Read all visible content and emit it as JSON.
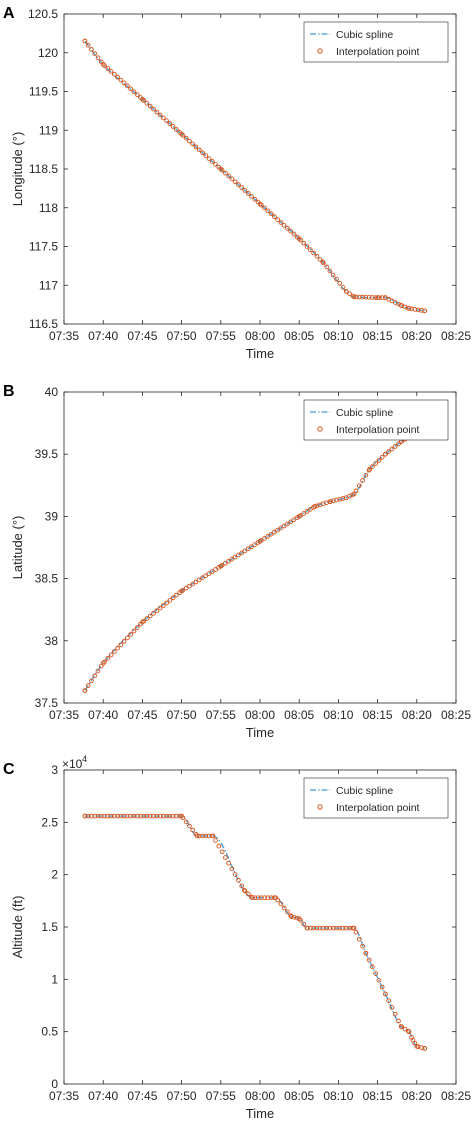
{
  "chart_data": [
    {
      "panel": "A",
      "type": "line",
      "xlabel": "Time",
      "ylabel": "Longitude (°)",
      "xlim": [
        "07:35",
        "08:25"
      ],
      "ylim": [
        116.5,
        120.5
      ],
      "xticks": [
        "07:35",
        "07:40",
        "07:45",
        "07:50",
        "07:55",
        "08:00",
        "08:05",
        "08:10",
        "08:15",
        "08:20",
        "08:25"
      ],
      "yticks": [
        "116.5",
        "117",
        "117.5",
        "118",
        "118.5",
        "119",
        "119.5",
        "120",
        "120.5"
      ],
      "legend_position": "top-right",
      "series": [
        {
          "name": "Cubic spline",
          "style": "dash-dot line",
          "color": "#4a9bd1"
        },
        {
          "name": "Interpolation point",
          "style": "circle markers",
          "color": "#d9541a"
        }
      ],
      "x": [
        "07:37:40",
        "07:40:00",
        "07:45:00",
        "07:50:00",
        "07:55:00",
        "08:00:00",
        "08:05:00",
        "08:08:00",
        "08:11:00",
        "08:12:00",
        "08:15:00",
        "08:16:00",
        "08:18:00",
        "08:19:00",
        "08:21:00"
      ],
      "values": [
        120.15,
        119.85,
        119.4,
        118.95,
        118.5,
        118.05,
        117.6,
        117.3,
        116.92,
        116.85,
        116.84,
        116.84,
        116.74,
        116.7,
        116.67
      ]
    },
    {
      "panel": "B",
      "type": "line",
      "xlabel": "Time",
      "ylabel": "Latitude (°)",
      "xlim": [
        "07:35",
        "08:25"
      ],
      "ylim": [
        37.5,
        40
      ],
      "xticks": [
        "07:35",
        "07:40",
        "07:45",
        "07:50",
        "07:55",
        "08:00",
        "08:05",
        "08:10",
        "08:15",
        "08:20",
        "08:25"
      ],
      "yticks": [
        "37.5",
        "38",
        "38.5",
        "39",
        "39.5",
        "40"
      ],
      "legend_position": "top-right",
      "series": [
        {
          "name": "Cubic spline",
          "style": "dash-dot line",
          "color": "#4a9bd1"
        },
        {
          "name": "Interpolation point",
          "style": "circle markers",
          "color": "#d9541a"
        }
      ],
      "x": [
        "07:37:40",
        "07:40:00",
        "07:45:00",
        "07:50:00",
        "07:55:00",
        "08:00:00",
        "08:05:00",
        "08:07:00",
        "08:09:00",
        "08:11:00",
        "08:12:00",
        "08:14:00",
        "08:16:00",
        "08:18:00",
        "08:19:30",
        "08:21:00"
      ],
      "values": [
        37.6,
        37.82,
        38.15,
        38.4,
        38.6,
        38.8,
        39.0,
        39.08,
        39.12,
        39.15,
        39.18,
        39.38,
        39.5,
        39.6,
        39.66,
        39.78
      ]
    },
    {
      "panel": "C",
      "type": "line",
      "xlabel": "Time",
      "ylabel": "Altitude (ft)",
      "scale_label": "×10",
      "scale_exponent": "4",
      "xlim": [
        "07:35",
        "08:25"
      ],
      "ylim": [
        0,
        3
      ],
      "xticks": [
        "07:35",
        "07:40",
        "07:45",
        "07:50",
        "07:55",
        "08:00",
        "08:05",
        "08:10",
        "08:15",
        "08:20",
        "08:25"
      ],
      "yticks": [
        "0",
        "0.5",
        "1",
        "1.5",
        "2",
        "2.5",
        "3"
      ],
      "legend_position": "top-right",
      "series": [
        {
          "name": "Cubic spline",
          "style": "dash-dot line",
          "color": "#4a9bd1"
        },
        {
          "name": "Interpolation point",
          "style": "circle markers",
          "color": "#d9541a"
        }
      ],
      "x": [
        "07:37:40",
        "07:50:00",
        "07:52:00",
        "07:54:00",
        "07:58:00",
        "07:59:00",
        "08:02:00",
        "08:04:00",
        "08:05:00",
        "08:06:00",
        "08:12:00",
        "08:13:30",
        "08:16:00",
        "08:18:00",
        "08:19:00",
        "08:19:30",
        "08:20:00",
        "08:21:00"
      ],
      "values": [
        2.56,
        2.56,
        2.37,
        2.37,
        1.85,
        1.78,
        1.78,
        1.6,
        1.58,
        1.49,
        1.49,
        1.25,
        0.86,
        0.55,
        0.5,
        0.42,
        0.36,
        0.34
      ]
    }
  ],
  "panels_labels": [
    "A",
    "B",
    "C"
  ]
}
